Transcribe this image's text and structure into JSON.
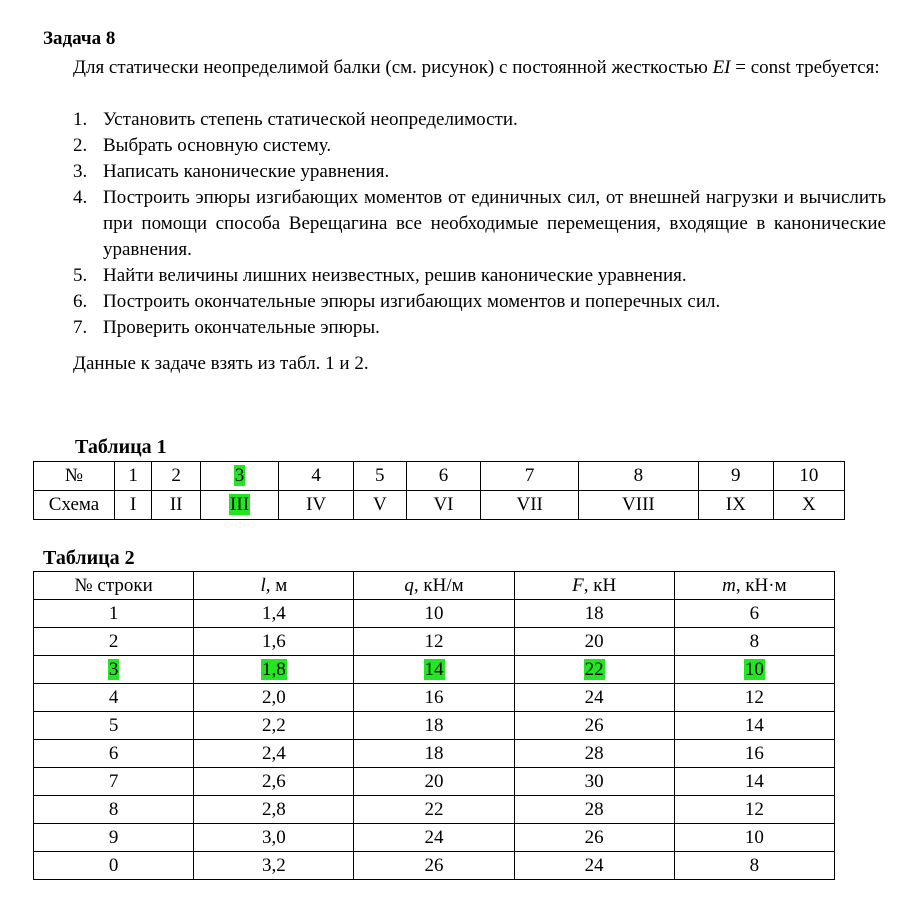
{
  "title": "Задача 8",
  "intro_prefix": "Для статически неопределимой балки (см. рисунок) с постоянной жесткостью",
  "intro_ei": "EI",
  "intro_suffix": " = const требуется:",
  "steps": [
    "Установить степень статической неопределимости.",
    "Выбрать основную систему.",
    "Написать канонические уравнения.",
    "Построить эпюры изгибающих моментов от единичных сил, от внешней нагрузки и вычислить при помощи способа Верещагина все необходимые перемещения, входящие в канонические уравнения.",
    "Найти величины лишних неизвестных, решив канонические уравнения.",
    "Построить окончательные эпюры изгибающих моментов и поперечных сил.",
    "Проверить окончательные эпюры."
  ],
  "note": "Данные к задаче взять из табл. 1 и 2.",
  "table1": {
    "caption": "Таблица 1",
    "row_labels": [
      "№",
      "Схема"
    ],
    "numbers": [
      "1",
      "2",
      "3",
      "4",
      "5",
      "6",
      "7",
      "8",
      "9",
      "10"
    ],
    "schemes": [
      "I",
      "II",
      "III",
      "IV",
      "V",
      "VI",
      "VII",
      "VIII",
      "IX",
      "X"
    ],
    "highlighted_index": 2
  },
  "table2": {
    "caption": "Таблица 2",
    "headers": [
      {
        "sym": "",
        "unit": "№ строки"
      },
      {
        "sym": "l",
        "unit": ", м"
      },
      {
        "sym": "q",
        "unit": ", кН/м"
      },
      {
        "sym": "F",
        "unit": ", кН"
      },
      {
        "sym": "m",
        "unit": ", кН·м"
      }
    ],
    "rows": [
      [
        "1",
        "1,4",
        "10",
        "18",
        "6"
      ],
      [
        "2",
        "1,6",
        "12",
        "20",
        "8"
      ],
      [
        "3",
        "1,8",
        "14",
        "22",
        "10"
      ],
      [
        "4",
        "2,0",
        "16",
        "24",
        "12"
      ],
      [
        "5",
        "2,2",
        "18",
        "26",
        "14"
      ],
      [
        "6",
        "2,4",
        "18",
        "28",
        "16"
      ],
      [
        "7",
        "2,6",
        "20",
        "30",
        "14"
      ],
      [
        "8",
        "2,8",
        "22",
        "28",
        "12"
      ],
      [
        "9",
        "3,0",
        "24",
        "26",
        "10"
      ],
      [
        "0",
        "3,2",
        "26",
        "24",
        "8"
      ]
    ],
    "highlighted_row": 2
  },
  "colors": {
    "highlight": "#22e622"
  }
}
